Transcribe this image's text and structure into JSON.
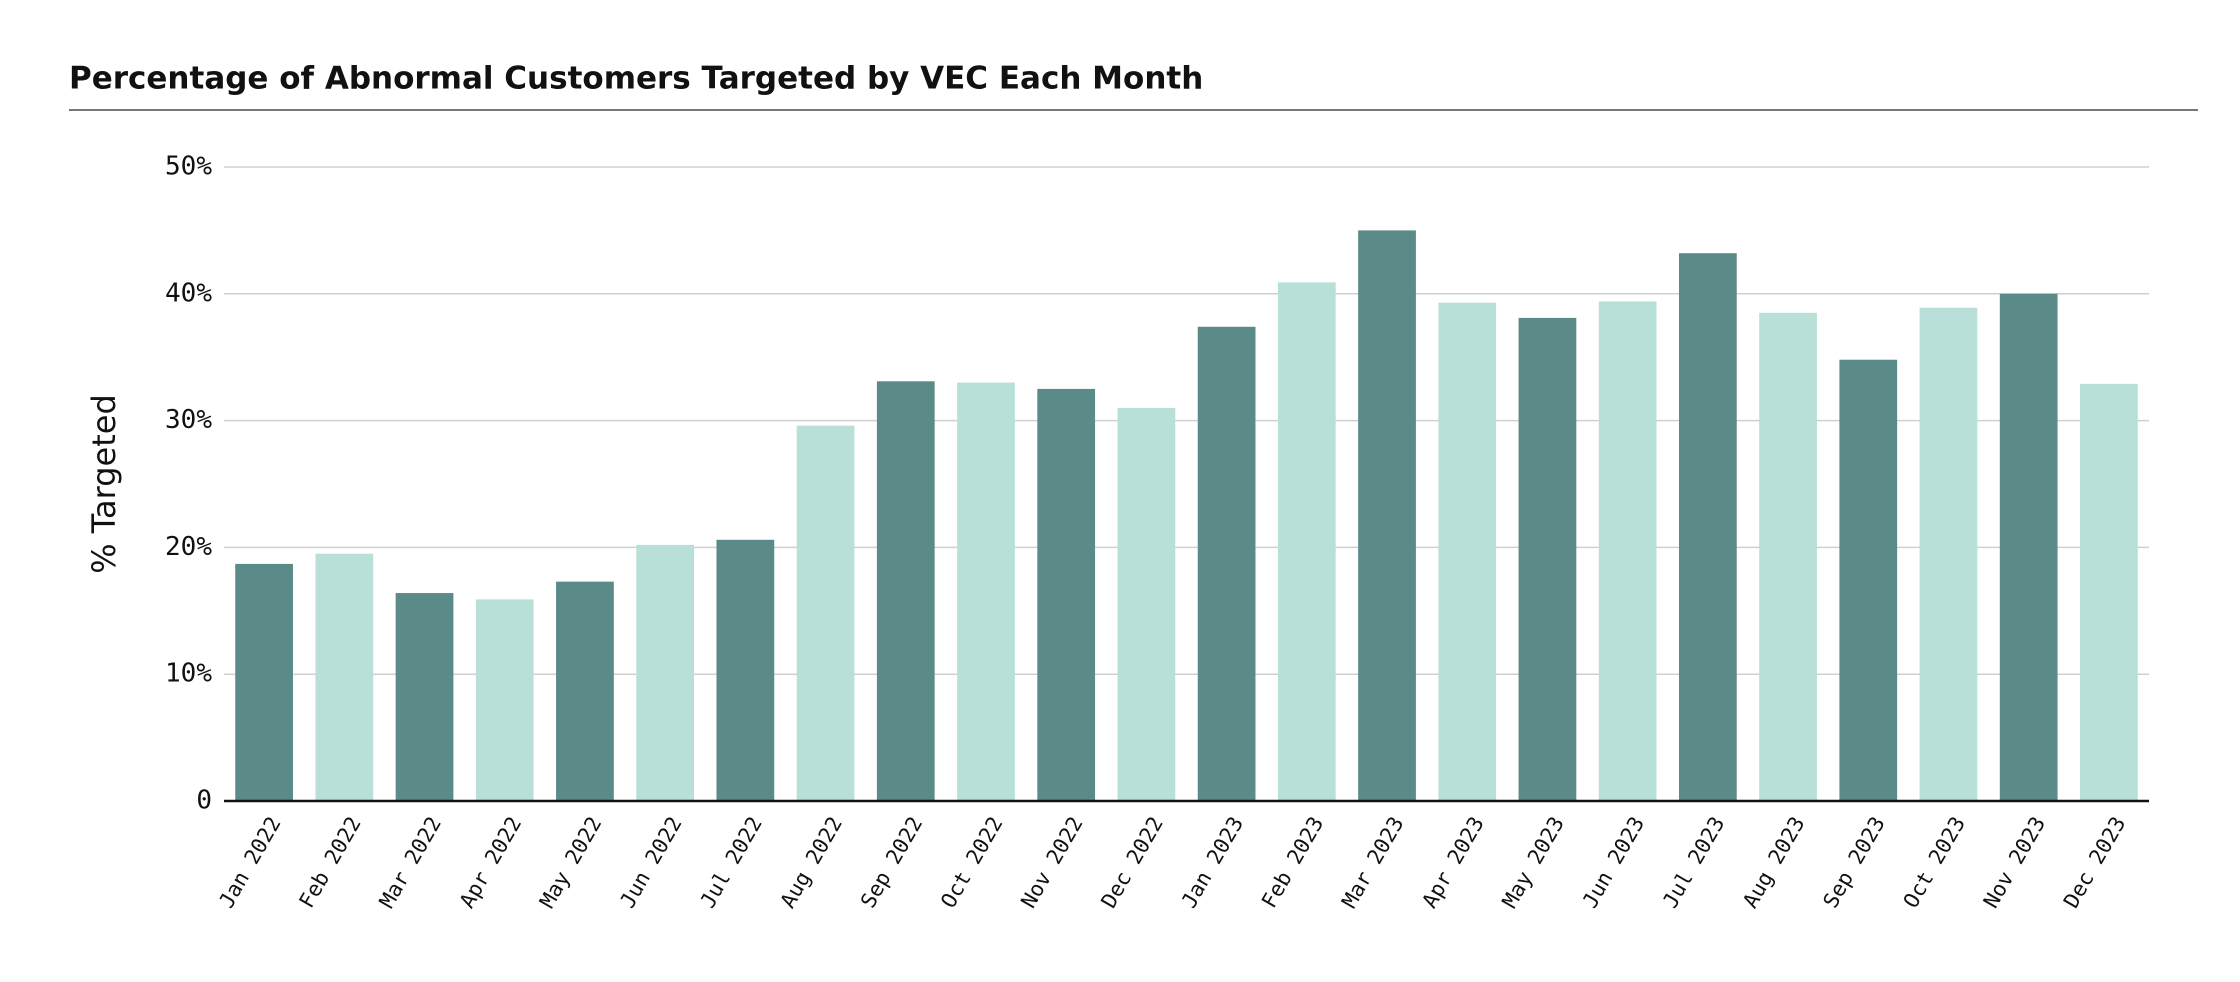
{
  "chart_data": {
    "type": "bar",
    "title": "Percentage of Abnormal Customers Targeted by VEC Each Month",
    "y_label": "% Targeted",
    "categories": [
      "Jan 2022",
      "Feb 2022",
      "Mar 2022",
      "Apr 2022",
      "May 2022",
      "Jun 2022",
      "Jul 2022",
      "Aug 2022",
      "Sep 2022",
      "Oct 2022",
      "Nov 2022",
      "Dec 2022",
      "Jan 2023",
      "Feb 2023",
      "Mar 2023",
      "Apr 2023",
      "May 2023",
      "Jun 2023",
      "Jul 2023",
      "Aug 2023",
      "Sep 2023",
      "Oct 2023",
      "Nov 2023",
      "Dec 2023"
    ],
    "values": [
      18.7,
      19.5,
      16.4,
      15.9,
      17.3,
      20.2,
      20.6,
      29.6,
      33.1,
      33.0,
      32.5,
      31.0,
      37.4,
      40.9,
      45.0,
      39.3,
      38.1,
      39.4,
      43.2,
      38.5,
      34.8,
      38.9,
      40.0,
      32.9
    ],
    "colors": [
      "#5a8b89",
      "#b9e0d8",
      "#5a8b89",
      "#b9e0d8",
      "#5a8b89",
      "#b9e0d8",
      "#5a8b89",
      "#b9e0d8",
      "#5a8b89",
      "#b9e0d8",
      "#5a8b89",
      "#b9e0d8",
      "#5a8b89",
      "#b9e0d8",
      "#5a8b89",
      "#b9e0d8",
      "#5a8b89",
      "#b9e0d8",
      "#5a8b89",
      "#b9e0d8",
      "#5a8b89",
      "#b9e0d8",
      "#5a8b89",
      "#b9e0d8"
    ],
    "ylim": [
      0,
      50
    ],
    "yticks": [
      {
        "value": 0,
        "label": "0"
      },
      {
        "value": 10,
        "label": "10%"
      },
      {
        "value": 20,
        "label": "20%"
      },
      {
        "value": 30,
        "label": "30%"
      },
      {
        "value": 40,
        "label": "40%"
      },
      {
        "value": 50,
        "label": "50%"
      }
    ],
    "grid": true
  }
}
